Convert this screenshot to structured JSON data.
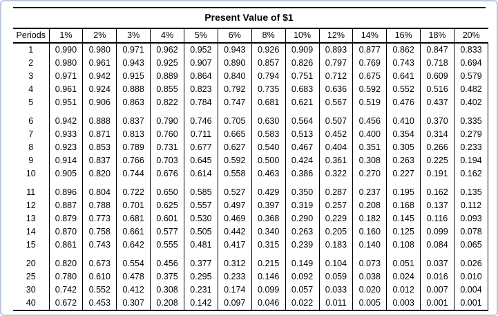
{
  "title": "Present Value of $1",
  "colors": {
    "frame_border": "#b9c7e0",
    "rule": "#000000",
    "text": "#000000",
    "background": "#ffffff"
  },
  "table": {
    "header": [
      "Periods",
      "1%",
      "2%",
      "3%",
      "4%",
      "5%",
      "6%",
      "8%",
      "10%",
      "12%",
      "14%",
      "16%",
      "18%",
      "20%"
    ],
    "groups": [
      {
        "rows": [
          {
            "period": "1",
            "values": [
              "0.990",
              "0.980",
              "0.971",
              "0.962",
              "0.952",
              "0.943",
              "0.926",
              "0.909",
              "0.893",
              "0.877",
              "0.862",
              "0.847",
              "0.833"
            ]
          },
          {
            "period": "2",
            "values": [
              "0.980",
              "0.961",
              "0.943",
              "0.925",
              "0.907",
              "0.890",
              "0.857",
              "0.826",
              "0.797",
              "0.769",
              "0.743",
              "0.718",
              "0.694"
            ]
          },
          {
            "period": "3",
            "values": [
              "0.971",
              "0.942",
              "0.915",
              "0.889",
              "0.864",
              "0.840",
              "0.794",
              "0.751",
              "0.712",
              "0.675",
              "0.641",
              "0.609",
              "0.579"
            ]
          },
          {
            "period": "4",
            "values": [
              "0.961",
              "0.924",
              "0.888",
              "0.855",
              "0.823",
              "0.792",
              "0.735",
              "0.683",
              "0.636",
              "0.592",
              "0.552",
              "0.516",
              "0.482"
            ]
          },
          {
            "period": "5",
            "values": [
              "0.951",
              "0.906",
              "0.863",
              "0.822",
              "0.784",
              "0.747",
              "0.681",
              "0.621",
              "0.567",
              "0.519",
              "0.476",
              "0.437",
              "0.402"
            ]
          }
        ]
      },
      {
        "rows": [
          {
            "period": "6",
            "values": [
              "0.942",
              "0.888",
              "0.837",
              "0.790",
              "0.746",
              "0.705",
              "0.630",
              "0.564",
              "0.507",
              "0.456",
              "0.410",
              "0.370",
              "0.335"
            ]
          },
          {
            "period": "7",
            "values": [
              "0.933",
              "0.871",
              "0.813",
              "0.760",
              "0.711",
              "0.665",
              "0.583",
              "0.513",
              "0.452",
              "0.400",
              "0.354",
              "0.314",
              "0.279"
            ]
          },
          {
            "period": "8",
            "values": [
              "0.923",
              "0.853",
              "0.789",
              "0.731",
              "0.677",
              "0.627",
              "0.540",
              "0.467",
              "0.404",
              "0.351",
              "0.305",
              "0.266",
              "0.233"
            ]
          },
          {
            "period": "9",
            "values": [
              "0.914",
              "0.837",
              "0.766",
              "0.703",
              "0.645",
              "0.592",
              "0.500",
              "0.424",
              "0.361",
              "0.308",
              "0.263",
              "0.225",
              "0.194"
            ]
          },
          {
            "period": "10",
            "values": [
              "0.905",
              "0.820",
              "0.744",
              "0.676",
              "0.614",
              "0.558",
              "0.463",
              "0.386",
              "0.322",
              "0.270",
              "0.227",
              "0.191",
              "0.162"
            ]
          }
        ]
      },
      {
        "rows": [
          {
            "period": "11",
            "values": [
              "0.896",
              "0.804",
              "0.722",
              "0.650",
              "0.585",
              "0.527",
              "0.429",
              "0.350",
              "0.287",
              "0.237",
              "0.195",
              "0.162",
              "0.135"
            ]
          },
          {
            "period": "12",
            "values": [
              "0.887",
              "0.788",
              "0.701",
              "0.625",
              "0.557",
              "0.497",
              "0.397",
              "0.319",
              "0.257",
              "0.208",
              "0.168",
              "0.137",
              "0.112"
            ]
          },
          {
            "period": "13",
            "values": [
              "0.879",
              "0.773",
              "0.681",
              "0.601",
              "0.530",
              "0.469",
              "0.368",
              "0.290",
              "0.229",
              "0.182",
              "0.145",
              "0.116",
              "0.093"
            ]
          },
          {
            "period": "14",
            "values": [
              "0.870",
              "0.758",
              "0.661",
              "0.577",
              "0.505",
              "0.442",
              "0.340",
              "0.263",
              "0.205",
              "0.160",
              "0.125",
              "0.099",
              "0.078"
            ]
          },
          {
            "period": "15",
            "values": [
              "0.861",
              "0.743",
              "0.642",
              "0.555",
              "0.481",
              "0.417",
              "0.315",
              "0.239",
              "0.183",
              "0.140",
              "0.108",
              "0.084",
              "0.065"
            ]
          }
        ]
      },
      {
        "rows": [
          {
            "period": "20",
            "values": [
              "0.820",
              "0.673",
              "0.554",
              "0.456",
              "0.377",
              "0.312",
              "0.215",
              "0.149",
              "0.104",
              "0.073",
              "0.051",
              "0.037",
              "0.026"
            ]
          },
          {
            "period": "25",
            "values": [
              "0.780",
              "0.610",
              "0.478",
              "0.375",
              "0.295",
              "0.233",
              "0.146",
              "0.092",
              "0.059",
              "0.038",
              "0.024",
              "0.016",
              "0.010"
            ]
          },
          {
            "period": "30",
            "values": [
              "0.742",
              "0.552",
              "0.412",
              "0.308",
              "0.231",
              "0.174",
              "0.099",
              "0.057",
              "0.033",
              "0.020",
              "0.012",
              "0.007",
              "0.004"
            ]
          },
          {
            "period": "40",
            "values": [
              "0.672",
              "0.453",
              "0.307",
              "0.208",
              "0.142",
              "0.097",
              "0.046",
              "0.022",
              "0.011",
              "0.005",
              "0.003",
              "0.001",
              "0.001"
            ]
          }
        ]
      }
    ]
  }
}
